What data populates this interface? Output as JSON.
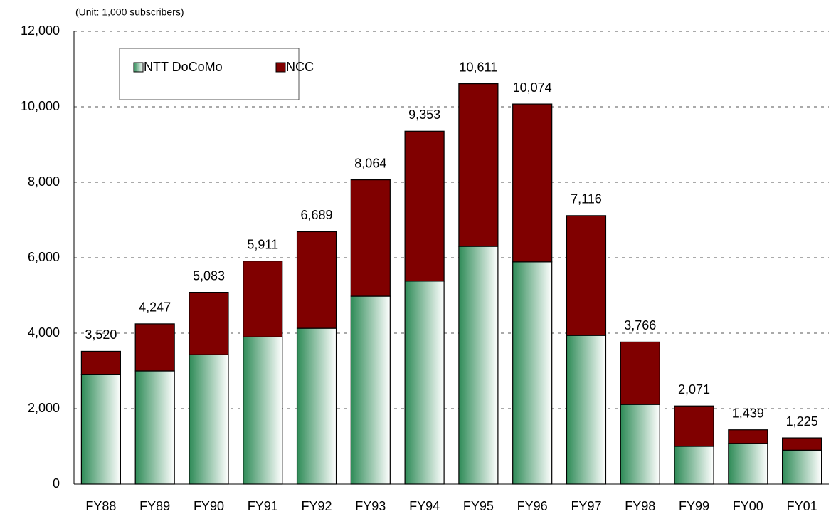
{
  "chart_data": {
    "type": "stacked_bar",
    "subtitle": "(Unit: 1,000 subscribers)",
    "categories": [
      "FY88",
      "FY89",
      "FY90",
      "FY91",
      "FY92",
      "FY93",
      "FY94",
      "FY95",
      "FY96",
      "FY97",
      "FY98",
      "FY99",
      "FY00",
      "FY01"
    ],
    "series": [
      {
        "name": "NTT DoCoMo",
        "color": "#2e8b57",
        "values": [
          2900,
          3000,
          3430,
          3900,
          4130,
          4980,
          5380,
          6300,
          5890,
          3940,
          2110,
          1000,
          1080,
          900
        ]
      },
      {
        "name": "NCC",
        "color": "#800000",
        "values": [
          620,
          1247,
          1653,
          2011,
          2559,
          3084,
          3973,
          4311,
          4184,
          3176,
          1656,
          1071,
          359,
          325
        ]
      }
    ],
    "total_labels": [
      "3,520",
      "4,247",
      "5,083",
      "5,911",
      "6,689",
      "8,064",
      "9,353",
      "10,611",
      "10,074",
      "7,116",
      "3,766",
      "2,071",
      "1,439",
      "1,225"
    ],
    "ylim": [
      0,
      12000
    ],
    "yticks": [
      0,
      {
        "value": 2000,
        "label": "2,000"
      },
      {
        "value": 4000,
        "label": "4,000"
      },
      {
        "value": 6000,
        "label": "6,000"
      },
      {
        "value": 8000,
        "label": "8,000"
      },
      {
        "value": 10000,
        "label": "10,000"
      },
      {
        "value": 12000,
        "label": "12,000"
      }
    ],
    "grid": true
  }
}
